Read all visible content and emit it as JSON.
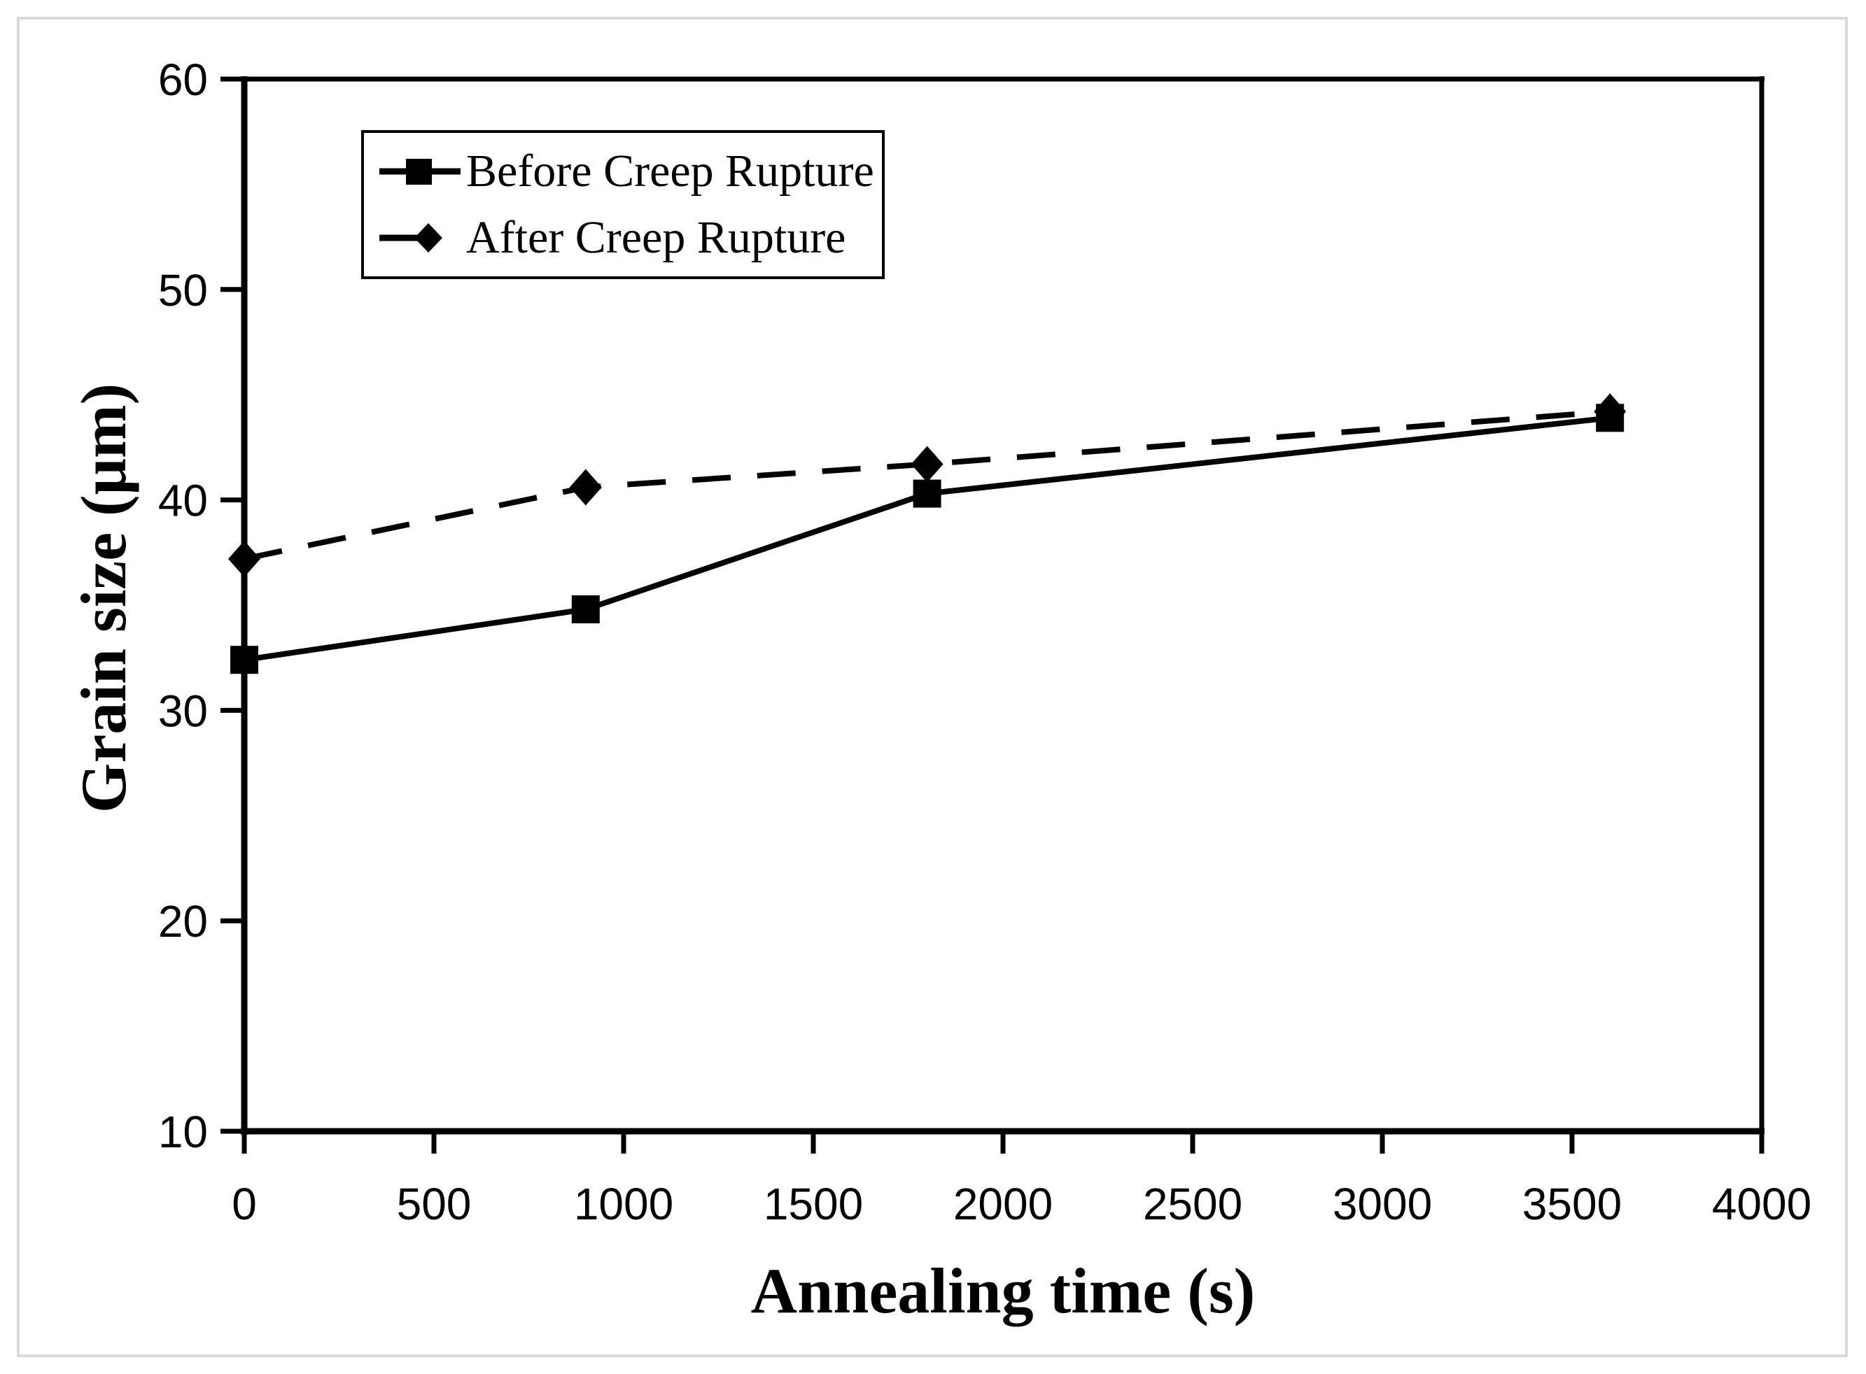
{
  "figure": {
    "background": "#ffffff",
    "frame_border_color": "#d9d9d9",
    "axis_color": "#000000"
  },
  "chart_data": {
    "type": "line",
    "title": "",
    "xlabel": "Annealing time (s)",
    "ylabel": "Grain size (μm)",
    "xlim": [
      0,
      4000
    ],
    "ylim": [
      10,
      60
    ],
    "x_ticks": [
      0,
      500,
      1000,
      1500,
      2000,
      2500,
      3000,
      3500,
      4000
    ],
    "y_ticks": [
      10,
      20,
      30,
      40,
      50,
      60
    ],
    "grid": false,
    "legend_position": "upper-left-inside",
    "series": [
      {
        "name": "Before Creep Rupture",
        "x": [
          0,
          900,
          1800,
          3600
        ],
        "y": [
          32.4,
          34.8,
          40.3,
          43.9
        ],
        "line_style": "solid",
        "marker": "square",
        "color": "#000000"
      },
      {
        "name": "After Creep Rupture",
        "x": [
          0,
          900,
          1800,
          3600
        ],
        "y": [
          37.2,
          40.6,
          41.7,
          44.2
        ],
        "line_style": "dashed",
        "marker": "diamond",
        "color": "#000000"
      }
    ]
  }
}
